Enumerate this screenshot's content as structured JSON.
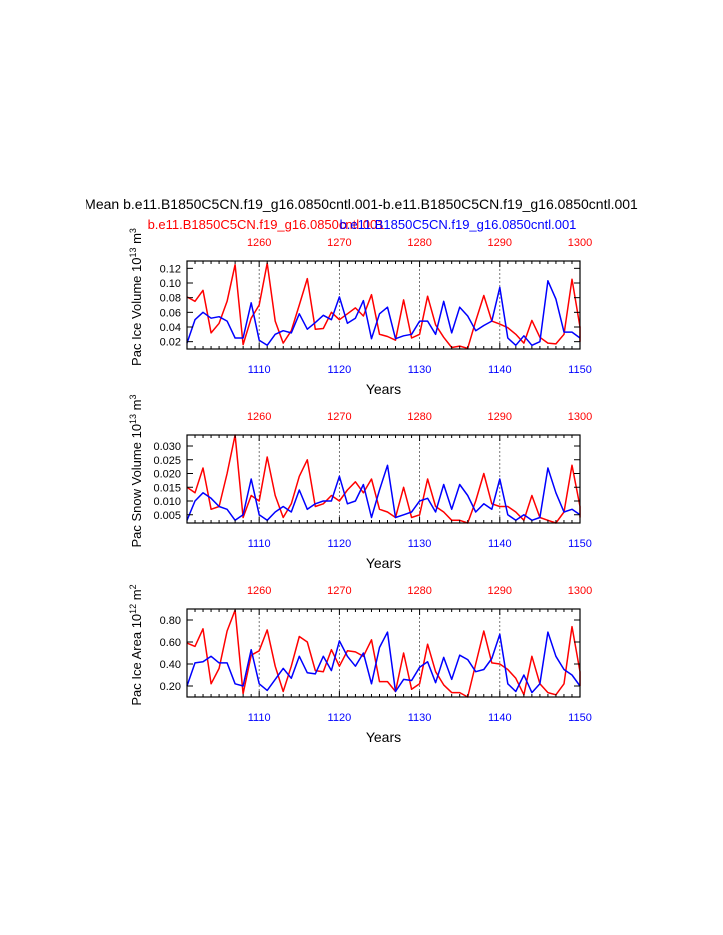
{
  "page": {
    "title": "Mean b.e11.B1850C5CN.f19_g16.0850cntl.001-b.e11.B1850C5CN.f19_g16.0850cntl.001",
    "subtitle_red": "b.e11.B1850C5CN.f19_g16.0850cntl.001",
    "subtitle_blue": "b.e11.B1850C5CN.f19_g16.0850cntl.001"
  },
  "colors": {
    "red": "#ff0000",
    "blue": "#0000ff",
    "axis": "#000000"
  },
  "chart_data": [
    {
      "type": "line",
      "ylabel": "Pac Ice Volume 10",
      "ylabel_sup": "13",
      "ylabel_unit": "m",
      "ylabel_unit_sup": "3",
      "xlabel": "Years",
      "xlim_bottom": [
        1101,
        1150
      ],
      "xlim_top": [
        1251,
        1300
      ],
      "xticks_bottom": [
        "1110",
        "1120",
        "1130",
        "1140",
        "1150"
      ],
      "xticks_top": [
        "1260",
        "1270",
        "1280",
        "1290",
        "1300"
      ],
      "ylim": [
        0.01,
        0.13
      ],
      "yticks": [
        "0.02",
        "0.04",
        "0.06",
        "0.08",
        "0.10",
        "0.12"
      ],
      "series": [
        {
          "name": "b.e11.B1850C5CN.f19_g16.0850cntl.001",
          "color": "red",
          "values": [
            0.081,
            0.075,
            0.09,
            0.032,
            0.045,
            0.075,
            0.125,
            0.016,
            0.052,
            0.07,
            0.127,
            0.048,
            0.018,
            0.035,
            0.07,
            0.106,
            0.037,
            0.038,
            0.06,
            0.05,
            0.058,
            0.066,
            0.055,
            0.084,
            0.03,
            0.027,
            0.022,
            0.077,
            0.025,
            0.03,
            0.082,
            0.043,
            0.026,
            0.012,
            0.014,
            0.011,
            0.048,
            0.083,
            0.048,
            0.044,
            0.039,
            0.03,
            0.018,
            0.049,
            0.026,
            0.018,
            0.017,
            0.03,
            0.105,
            0.04,
            0.02
          ]
        },
        {
          "name": "b.e11.B1850C5CN.f19_g16.0850cntl.001",
          "color": "blue",
          "values": [
            0.018,
            0.05,
            0.06,
            0.052,
            0.054,
            0.048,
            0.025,
            0.025,
            0.073,
            0.022,
            0.015,
            0.03,
            0.035,
            0.032,
            0.058,
            0.037,
            0.046,
            0.056,
            0.05,
            0.081,
            0.045,
            0.052,
            0.076,
            0.024,
            0.058,
            0.067,
            0.024,
            0.028,
            0.03,
            0.048,
            0.048,
            0.03,
            0.075,
            0.032,
            0.067,
            0.055,
            0.035,
            0.042,
            0.048,
            0.094,
            0.025,
            0.015,
            0.028,
            0.015,
            0.02,
            0.103,
            0.078,
            0.033,
            0.033,
            0.025
          ]
        }
      ]
    },
    {
      "type": "line",
      "ylabel": "Pac Snow Volume 10",
      "ylabel_sup": "13",
      "ylabel_unit": "m",
      "ylabel_unit_sup": "3",
      "xlabel": "Years",
      "xlim_bottom": [
        1101,
        1150
      ],
      "xlim_top": [
        1251,
        1300
      ],
      "xticks_bottom": [
        "1110",
        "1120",
        "1130",
        "1140",
        "1150"
      ],
      "xticks_top": [
        "1260",
        "1270",
        "1280",
        "1290",
        "1300"
      ],
      "ylim": [
        0.002,
        0.034
      ],
      "yticks": [
        "0.005",
        "0.010",
        "0.015",
        "0.020",
        "0.025",
        "0.030"
      ],
      "series": [
        {
          "name": "b.e11.B1850C5CN.f19_g16.0850cntl.001",
          "color": "red",
          "values": [
            0.015,
            0.013,
            0.022,
            0.007,
            0.008,
            0.02,
            0.034,
            0.004,
            0.012,
            0.01,
            0.026,
            0.012,
            0.004,
            0.009,
            0.019,
            0.025,
            0.008,
            0.009,
            0.012,
            0.01,
            0.014,
            0.017,
            0.013,
            0.018,
            0.007,
            0.006,
            0.004,
            0.015,
            0.004,
            0.005,
            0.018,
            0.008,
            0.006,
            0.003,
            0.003,
            0.002,
            0.01,
            0.02,
            0.009,
            0.008,
            0.008,
            0.006,
            0.003,
            0.012,
            0.004,
            0.003,
            0.002,
            0.006,
            0.023,
            0.008,
            0.004
          ]
        },
        {
          "name": "b.e11.B1850C5CN.f19_g16.0850cntl.001",
          "color": "blue",
          "values": [
            0.003,
            0.01,
            0.013,
            0.011,
            0.008,
            0.007,
            0.003,
            0.005,
            0.018,
            0.005,
            0.003,
            0.006,
            0.008,
            0.006,
            0.014,
            0.007,
            0.009,
            0.01,
            0.01,
            0.019,
            0.009,
            0.01,
            0.016,
            0.004,
            0.014,
            0.023,
            0.004,
            0.005,
            0.006,
            0.01,
            0.011,
            0.006,
            0.016,
            0.007,
            0.016,
            0.012,
            0.006,
            0.009,
            0.007,
            0.018,
            0.005,
            0.003,
            0.005,
            0.003,
            0.004,
            0.022,
            0.013,
            0.006,
            0.007,
            0.005
          ]
        }
      ]
    },
    {
      "type": "line",
      "ylabel": "Pac Ice Area 10",
      "ylabel_sup": "12",
      "ylabel_unit": "m",
      "ylabel_unit_sup": "2",
      "xlabel": "Years",
      "xlim_bottom": [
        1101,
        1150
      ],
      "xlim_top": [
        1251,
        1300
      ],
      "xticks_bottom": [
        "1110",
        "1120",
        "1130",
        "1140",
        "1150"
      ],
      "xticks_top": [
        "1260",
        "1270",
        "1280",
        "1290",
        "1300"
      ],
      "ylim": [
        0.1,
        0.9
      ],
      "yticks": [
        "0.20",
        "0.40",
        "0.60",
        "0.80"
      ],
      "series": [
        {
          "name": "b.e11.B1850C5CN.f19_g16.0850cntl.001",
          "color": "red",
          "values": [
            0.59,
            0.56,
            0.72,
            0.22,
            0.36,
            0.7,
            0.89,
            0.13,
            0.48,
            0.52,
            0.71,
            0.38,
            0.15,
            0.38,
            0.65,
            0.6,
            0.34,
            0.33,
            0.53,
            0.38,
            0.52,
            0.51,
            0.47,
            0.62,
            0.24,
            0.24,
            0.15,
            0.5,
            0.17,
            0.22,
            0.58,
            0.33,
            0.21,
            0.14,
            0.14,
            0.1,
            0.4,
            0.7,
            0.41,
            0.4,
            0.35,
            0.27,
            0.12,
            0.47,
            0.22,
            0.14,
            0.12,
            0.22,
            0.74,
            0.33,
            0.2
          ]
        },
        {
          "name": "b.e11.B1850C5CN.f19_g16.0850cntl.001",
          "color": "blue",
          "values": [
            0.2,
            0.41,
            0.42,
            0.47,
            0.41,
            0.41,
            0.22,
            0.2,
            0.53,
            0.22,
            0.16,
            0.26,
            0.36,
            0.27,
            0.47,
            0.32,
            0.31,
            0.47,
            0.34,
            0.61,
            0.47,
            0.38,
            0.5,
            0.22,
            0.55,
            0.69,
            0.15,
            0.26,
            0.25,
            0.37,
            0.42,
            0.23,
            0.46,
            0.26,
            0.48,
            0.44,
            0.33,
            0.35,
            0.45,
            0.67,
            0.22,
            0.15,
            0.3,
            0.14,
            0.22,
            0.69,
            0.47,
            0.35,
            0.3,
            0.2
          ]
        }
      ]
    }
  ]
}
